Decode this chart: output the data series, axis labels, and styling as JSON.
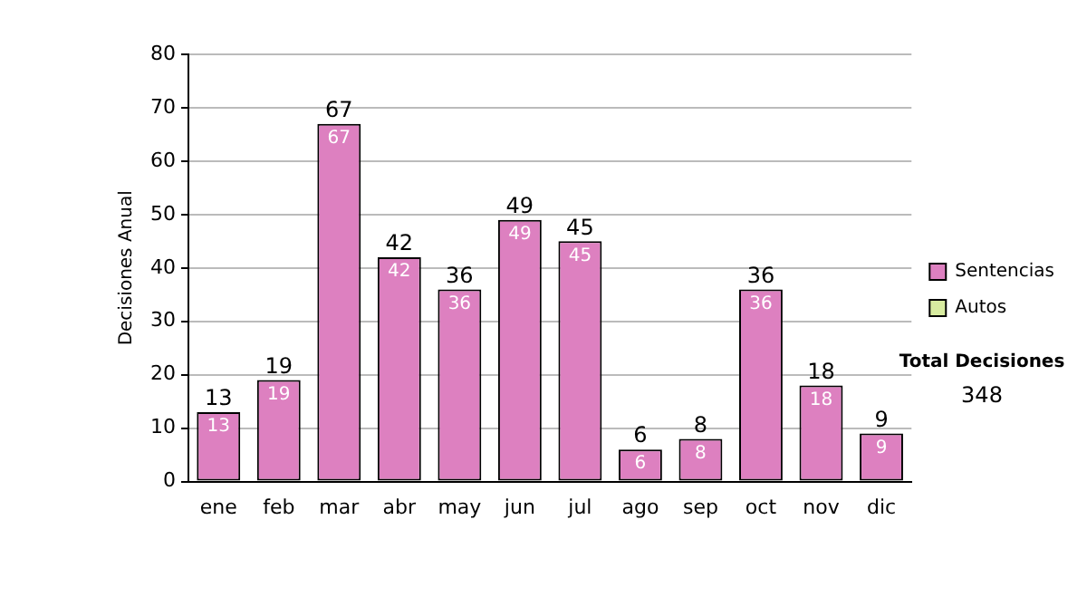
{
  "chart_data": {
    "type": "bar",
    "ylabel": "Decisiones Anual",
    "categories": [
      "ene",
      "feb",
      "mar",
      "abr",
      "may",
      "jun",
      "jul",
      "ago",
      "sep",
      "oct",
      "nov",
      "dic"
    ],
    "series": [
      {
        "name": "Sentencias",
        "color": "#dd80c0",
        "values": [
          13,
          19,
          67,
          42,
          36,
          49,
          45,
          6,
          8,
          36,
          18,
          9
        ],
        "value_labels": [
          "13",
          "19",
          "67",
          "42",
          "36",
          "49",
          "45",
          "6",
          "8",
          "36",
          "18",
          "9"
        ]
      },
      {
        "name": "Autos",
        "color": "#d8eca0",
        "values": [
          0,
          0,
          0,
          0,
          0,
          0,
          0,
          0,
          0,
          0,
          0,
          0
        ]
      }
    ],
    "stacked": true,
    "totals": [
      "13",
      "19",
      "67",
      "42",
      "36",
      "49",
      "45",
      "6",
      "8",
      "36",
      "18",
      "9"
    ],
    "ylim": [
      0,
      80
    ],
    "yticks": [
      0,
      10,
      20,
      30,
      40,
      50,
      60,
      70,
      80
    ],
    "grid": "y",
    "legend": "right",
    "annotations": [
      "Total Decisiones",
      "348"
    ]
  }
}
